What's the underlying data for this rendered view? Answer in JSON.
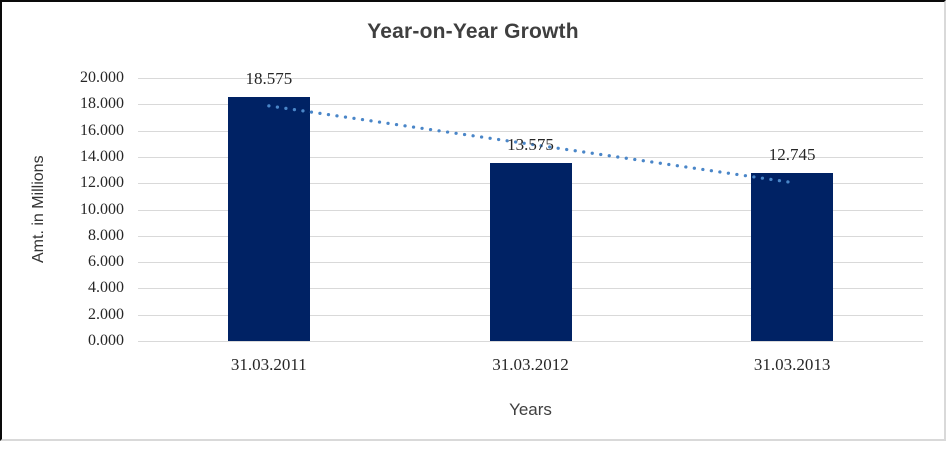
{
  "chart_data": {
    "type": "bar",
    "title": "Year-on-Year Growth",
    "xlabel": "Years",
    "ylabel": "Amt. in Millions",
    "categories": [
      "31.03.2011",
      "31.03.2012",
      "31.03.2013"
    ],
    "values": [
      18.575,
      13.575,
      12.745
    ],
    "data_labels": [
      "18.575",
      "13.575",
      "12.745"
    ],
    "ylim": [
      0,
      20
    ],
    "ytick_step": 2,
    "ytick_labels": [
      "0.000",
      "2.000",
      "4.000",
      "6.000",
      "8.000",
      "10.000",
      "12.000",
      "14.000",
      "16.000",
      "18.000",
      "20.000"
    ],
    "grid": true,
    "legend_position": "none",
    "bar_color": "#002264",
    "gridline_color": "#d9d9d9",
    "label_color": "#262626",
    "title_color": "#3f3f3f",
    "trendline": {
      "type": "linear",
      "style": "dotted",
      "color": "#4a86c8"
    }
  }
}
